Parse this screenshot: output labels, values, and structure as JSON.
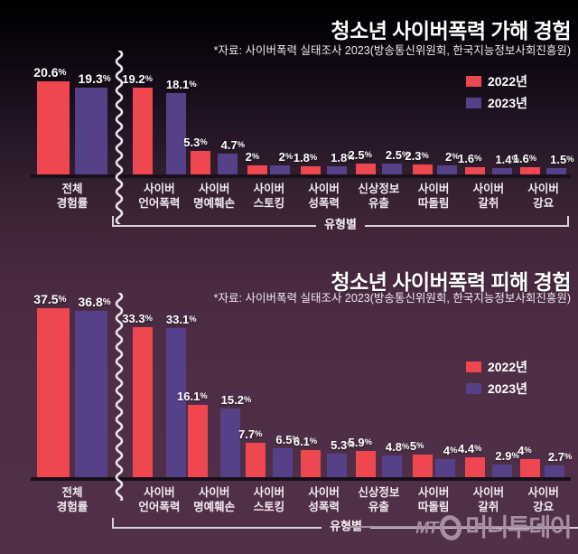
{
  "colors": {
    "bar_2022": "#ee4750",
    "bar_2023": "#564189",
    "axis": "#190f1b",
    "background_top": "#000000",
    "background_bottom": "#513148",
    "text": "#ffffff",
    "divider": "#e9e2e9",
    "bracket": "#d9d0d9",
    "logo": "#a78fa3"
  },
  "legend": [
    {
      "label": "2022년",
      "color": "#ee4750"
    },
    {
      "label": "2023년",
      "color": "#564189"
    }
  ],
  "footer": {
    "logo_mt": "MT",
    "logo_text": "머니투데이"
  },
  "chart_data": [
    {
      "type": "bar",
      "title": "청소년 사이버폭력 가해 경험",
      "source": "*자료: 사이버폭력 실태조사 2023(방송통신위원회, 한국지능정보사회진흥원)",
      "unit": "%",
      "group_label": "유형별",
      "categories": [
        [
          "전체",
          "경험률"
        ],
        [
          "사이버",
          "언어폭력"
        ],
        [
          "사이버",
          "명예훼손"
        ],
        [
          "사이버",
          "스토킹"
        ],
        [
          "사이버",
          "성폭력"
        ],
        [
          "신상정보",
          "유출"
        ],
        [
          "사이버",
          "따돌림"
        ],
        [
          "사이버",
          "갈취"
        ],
        [
          "사이버",
          "강요"
        ]
      ],
      "series": [
        {
          "name": "2022년",
          "color": "#ee4750",
          "values": [
            20.6,
            19.2,
            5.3,
            2,
            1.8,
            2.5,
            2.3,
            1.6,
            1.6
          ]
        },
        {
          "name": "2023년",
          "color": "#564189",
          "values": [
            19.3,
            18.1,
            4.7,
            2,
            1.8,
            2.5,
            2,
            1.4,
            1.5
          ]
        }
      ]
    },
    {
      "type": "bar",
      "title": "청소년 사이버폭력 피해 경험",
      "source": "*자료: 사이버폭력 실태조사 2023(방송통신위원회, 한국지능정보사회진흥원)",
      "unit": "%",
      "group_label": "유형별",
      "categories": [
        [
          "전체",
          "경험률"
        ],
        [
          "사이버",
          "언어폭력"
        ],
        [
          "사이버",
          "명예훼손"
        ],
        [
          "사이버",
          "스토킹"
        ],
        [
          "사이버",
          "성폭력"
        ],
        [
          "신상정보",
          "유출"
        ],
        [
          "사이버",
          "따돌림"
        ],
        [
          "사이버",
          "갈취"
        ],
        [
          "사이버",
          "강요"
        ]
      ],
      "series": [
        {
          "name": "2022년",
          "color": "#ee4750",
          "values": [
            37.5,
            33.3,
            16.1,
            7.7,
            6.1,
            5.9,
            5,
            4.4,
            4
          ]
        },
        {
          "name": "2023년",
          "color": "#564189",
          "values": [
            36.8,
            33.1,
            15.2,
            6.5,
            5.3,
            4.8,
            4,
            2.9,
            2.7
          ]
        }
      ]
    }
  ]
}
